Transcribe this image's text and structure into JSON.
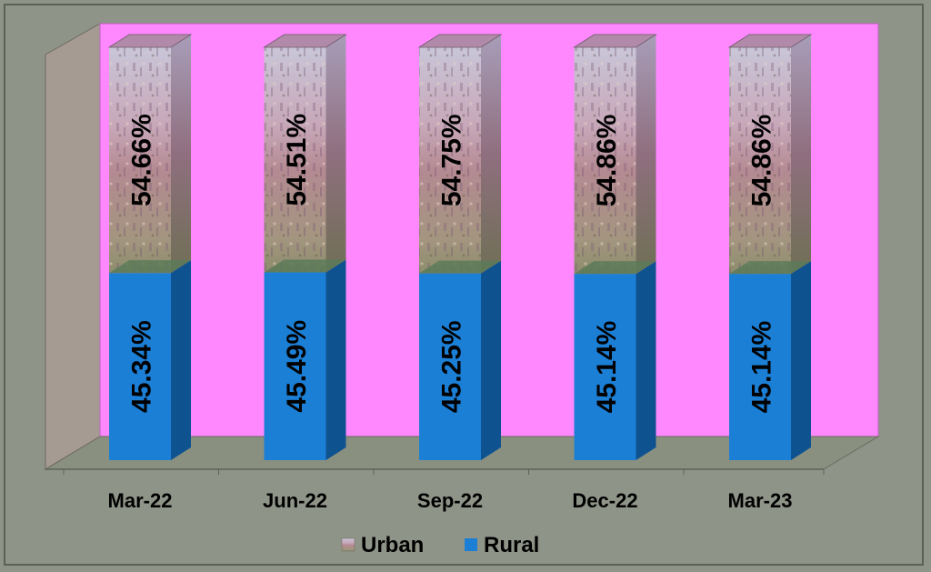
{
  "chart_data": {
    "type": "bar",
    "stacked": true,
    "percent_stacked": true,
    "three_d": true,
    "categories": [
      "Mar-22",
      "Jun-22",
      "Sep-22",
      "Dec-22",
      "Mar-23"
    ],
    "series": [
      {
        "name": "Rural",
        "values": [
          45.34,
          45.49,
          45.25,
          45.14,
          45.14
        ],
        "labels": [
          "45.34%",
          "45.49%",
          "45.25%",
          "45.14%",
          "45.14%"
        ],
        "color": "#1c7fd6",
        "side_color": "#0e5290",
        "top_color": "#1a6cb6"
      },
      {
        "name": "Urban",
        "values": [
          54.66,
          54.51,
          54.75,
          54.86,
          54.86
        ],
        "labels": [
          "54.66%",
          "54.51%",
          "54.75%",
          "54.86%",
          "54.86%"
        ],
        "fill": "photo-texture",
        "color": "#b39a9a"
      }
    ],
    "ylim": [
      0,
      100
    ],
    "legend": {
      "position": "bottom",
      "order": [
        "Urban",
        "Rural"
      ]
    },
    "colors": {
      "background": "#8f9488",
      "plot_back_wall": "#ff88ff",
      "side_wall": "#a59b92",
      "floor": "#8a9080"
    }
  }
}
